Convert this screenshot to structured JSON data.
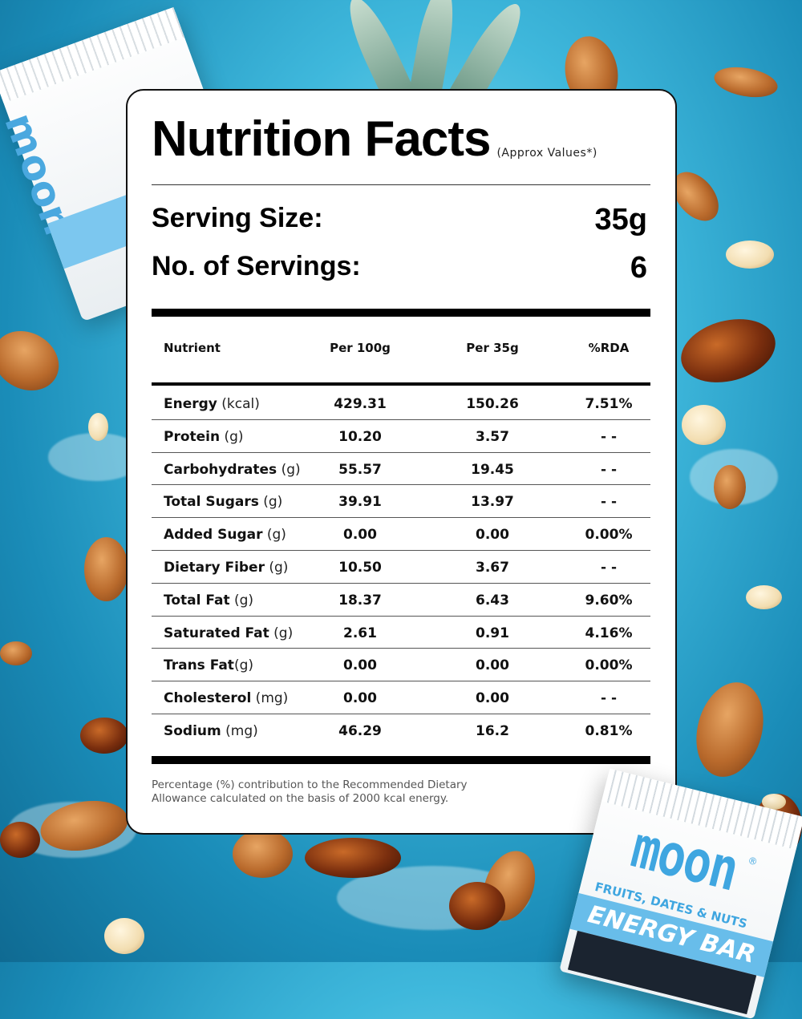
{
  "card": {
    "title": "Nutrition Facts",
    "approx": "(Approx Values*)",
    "serving_size_label": "Serving Size:",
    "serving_size_value": "35g",
    "servings_label": "No. of Servings:",
    "servings_value": "6"
  },
  "table": {
    "headers": [
      "Nutrient",
      "Per 100g",
      "Per 35g",
      "%RDA"
    ],
    "rows": [
      {
        "name": "Energy",
        "unit": " (kcal)",
        "per100": "429.31",
        "per35": "150.26",
        "rda": "7.51%"
      },
      {
        "name": "Protein",
        "unit": " (g)",
        "per100": "10.20",
        "per35": "3.57",
        "rda": "- -"
      },
      {
        "name": "Carbohydrates",
        "unit": " (g)",
        "per100": "55.57",
        "per35": "19.45",
        "rda": "- -"
      },
      {
        "name": "Total Sugars",
        "unit": " (g)",
        "per100": "39.91",
        "per35": "13.97",
        "rda": "- -"
      },
      {
        "name": "Added Sugar",
        "unit": " (g)",
        "per100": "0.00",
        "per35": "0.00",
        "rda": "0.00%"
      },
      {
        "name": "Dietary Fiber",
        "unit": " (g)",
        "per100": "10.50",
        "per35": "3.67",
        "rda": "- -"
      },
      {
        "name": "Total Fat",
        "unit": " (g)",
        "per100": "18.37",
        "per35": "6.43",
        "rda": "9.60%"
      },
      {
        "name": "Saturated Fat",
        "unit": " (g)",
        "per100": "2.61",
        "per35": "0.91",
        "rda": "4.16%"
      },
      {
        "name": "Trans Fat",
        "unit": "(g)",
        "per100": "0.00",
        "per35": "0.00",
        "rda": "0.00%"
      },
      {
        "name": "Cholesterol",
        "unit": " (mg)",
        "per100": "0.00",
        "per35": "0.00",
        "rda": "- -"
      },
      {
        "name": "Sodium",
        "unit": " (mg)",
        "per100": "46.29",
        "per35": "16.2",
        "rda": "0.81%"
      }
    ]
  },
  "footnote": "Percentage (%) contribution to the Recommended Dietary Allowance calculated on the basis of 2000 kcal energy.",
  "packaging": {
    "brand": "moon",
    "registered": "®",
    "subtitle": "FRUITS, DATES & NUTS",
    "product": "ENERGY BAR",
    "top_pack_brand": "moon"
  },
  "colors": {
    "background": "#2fa9d4",
    "card": "#ffffff",
    "brand_blue": "#3fa6e0"
  }
}
